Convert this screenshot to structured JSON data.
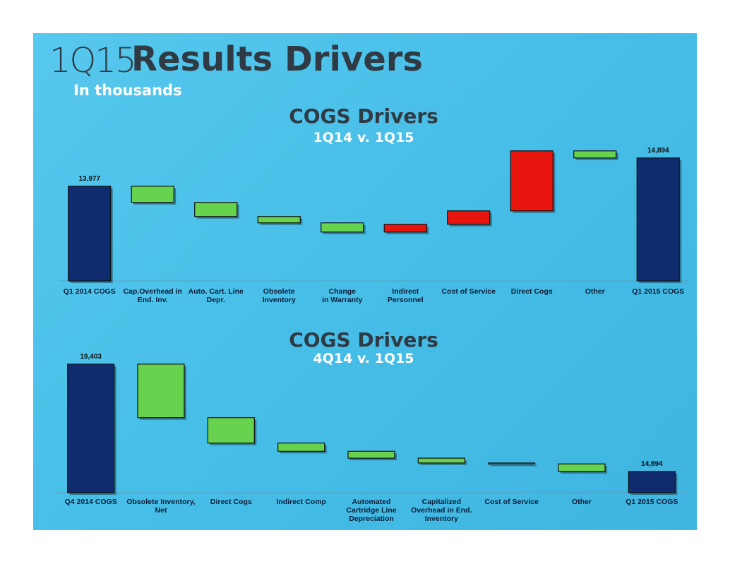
{
  "header": {
    "title_prefix": "1Q15",
    "title": "Results Drivers",
    "subtitle": "In thousands"
  },
  "chart_data": [
    {
      "type": "waterfall",
      "title": "COGS Drivers",
      "subtitle": "1Q14 v. 1Q15",
      "categories": [
        "Q1 2014 COGS",
        "Cap.Overhead in\nEnd. Inv.",
        "Auto. Cart. Line\nDepr.",
        "Obsolete\nInventory",
        "Change\nin Warranty",
        "Indirect\nPersonnel",
        "Cost of Service",
        "Direct Cogs",
        "Other",
        "Q1 2015 COGS"
      ],
      "values": [
        13977,
        -527,
        -458,
        -206,
        -298,
        252,
        436,
        1948,
        -230,
        14894
      ],
      "value_labels": [
        "13,977",
        null,
        null,
        null,
        null,
        null,
        null,
        null,
        null,
        "14,894"
      ],
      "measures": [
        "absolute",
        "relative",
        "relative",
        "relative",
        "relative",
        "relative",
        "relative",
        "relative",
        "relative",
        "total"
      ],
      "colors": {
        "total": "#0e2c6e",
        "increase": "#e8140e",
        "decrease": "#66d24e"
      },
      "ylim": [
        10900,
        15210
      ]
    },
    {
      "type": "waterfall",
      "title": "COGS Drivers",
      "subtitle": "4Q14 v. 1Q15",
      "categories": [
        "Q4 2014 COGS",
        "Obsolete Inventory,\nNet",
        "Direct Cogs",
        "Indirect Comp",
        "Automated\nCartridge Line\nDepreciation",
        "Capitalized\nOverhead in End.\nInventory",
        "Cost of Service",
        "Other",
        "Q1 2015 COGS"
      ],
      "values": [
        19403,
        -2250,
        -1067,
        -346,
        -289,
        -202,
        -39,
        -316,
        14894
      ],
      "value_labels": [
        "19,403",
        null,
        null,
        null,
        null,
        null,
        null,
        null,
        "14,894"
      ],
      "measures": [
        "absolute",
        "relative",
        "relative",
        "relative",
        "relative",
        "relative",
        "relative",
        "relative",
        "total"
      ],
      "colors": {
        "total": "#0e2c6e",
        "increase": "#e8140e",
        "decrease": "#66d24e"
      },
      "ylim": [
        14000,
        19725
      ]
    }
  ]
}
